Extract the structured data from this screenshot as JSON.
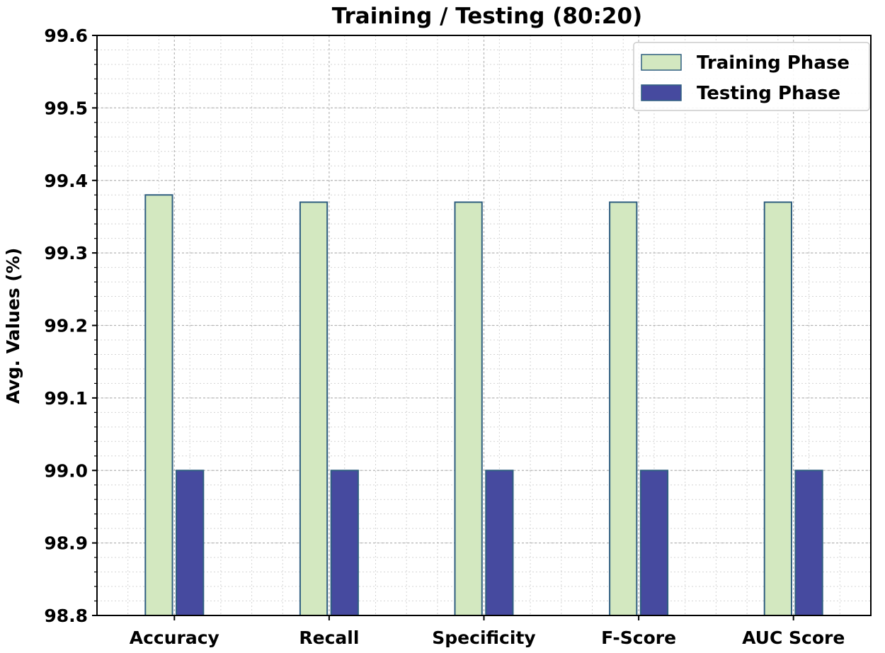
{
  "chart_data": {
    "type": "bar",
    "title": "Training / Testing (80:20)",
    "xlabel": "",
    "ylabel": "Avg. Values (%)",
    "categories": [
      "Accuracy",
      "Recall",
      "Specificity",
      "F-Score",
      "AUC Score"
    ],
    "series": [
      {
        "name": "Training Phase",
        "values": [
          99.38,
          99.37,
          99.37,
          99.37,
          99.37
        ]
      },
      {
        "name": "Testing Phase",
        "values": [
          99.0,
          99.0,
          99.0,
          99.0,
          99.0
        ]
      }
    ],
    "ylim": [
      98.8,
      99.6
    ],
    "yticks": [
      "98.8",
      "98.9",
      "99.0",
      "99.1",
      "99.2",
      "99.3",
      "99.4",
      "99.5",
      "99.6"
    ],
    "grid": true,
    "minor_grid": true,
    "legend_position": "top-right",
    "colors": {
      "training_fill": "#d3e8c0",
      "training_edge": "#2f5e80",
      "testing_fill": "#464a9f",
      "testing_edge": "#2f5e80",
      "axis": "#000000"
    }
  }
}
